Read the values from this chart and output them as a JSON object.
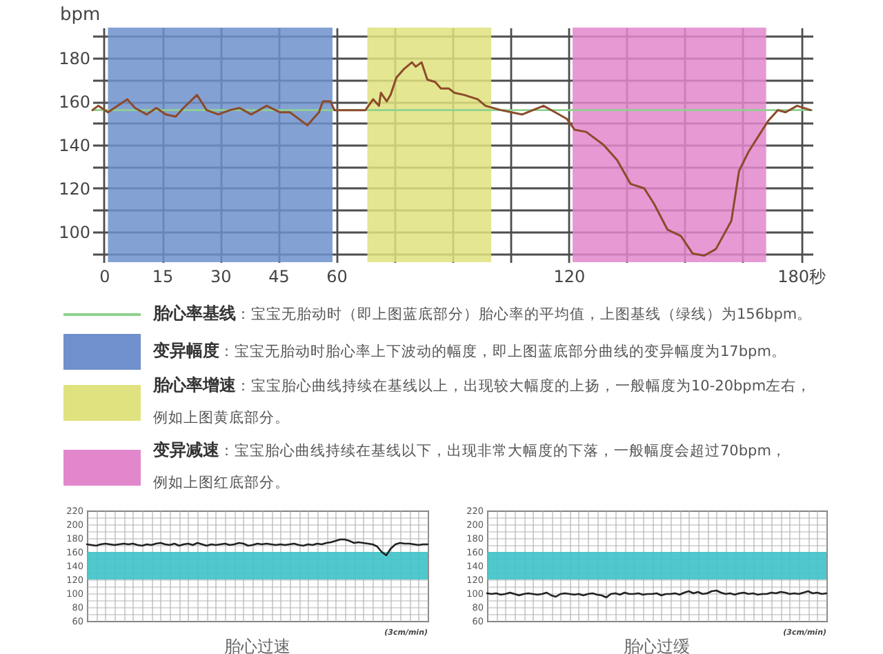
{
  "chart_data": [
    {
      "type": "line",
      "ylabel": "bpm",
      "x": [
        -3,
        -1.5,
        1,
        3.5,
        6,
        8,
        11,
        13.5,
        16,
        18.5,
        20.5,
        24,
        26.5,
        29.5,
        32.5,
        35,
        38,
        42,
        45.5,
        48,
        52.5,
        54.5,
        55.5,
        56.5,
        58.5,
        59.5,
        63.5,
        67.5,
        69.5,
        71,
        71.5,
        73,
        74,
        75.5,
        77.5,
        79.5,
        80.5,
        82,
        83.5,
        85.5,
        87,
        89,
        90.5,
        93,
        96.5,
        98.5,
        102.5,
        108,
        113.5,
        116.5,
        119.5,
        121.5,
        124.5,
        129,
        132.5,
        136,
        139.5,
        142,
        145.5,
        149,
        152,
        155,
        158,
        162,
        164,
        166.5,
        169,
        171.5,
        174,
        176,
        179,
        182.5
      ],
      "series": [
        {
          "color": "#8c4a2a",
          "values": [
            156,
            158,
            155,
            158,
            161,
            157,
            154,
            157,
            154,
            153,
            157,
            163,
            156,
            154,
            156,
            157,
            154,
            158,
            155,
            155,
            149,
            153,
            155,
            160,
            160,
            156,
            156,
            156,
            161,
            158,
            164,
            160,
            163,
            171,
            175,
            178,
            176,
            178,
            170,
            169,
            166,
            166,
            164,
            163,
            161,
            158,
            156,
            154,
            158,
            155,
            152,
            147,
            146,
            140,
            133,
            122,
            120,
            113,
            101,
            98,
            90,
            89,
            92,
            105,
            128,
            137,
            144,
            151,
            156,
            155,
            158,
            156
          ]
        }
      ],
      "xlim": [
        -3,
        183
      ],
      "ylim": [
        86,
        194
      ],
      "xticks": [
        0,
        15,
        30,
        45,
        60,
        {
          "value": 75,
          "label": null
        },
        {
          "value": 90,
          "label": null
        },
        {
          "value": 105,
          "label": null
        },
        120,
        {
          "value": 135,
          "label": null
        },
        {
          "value": 150,
          "label": null
        },
        {
          "value": 165,
          "label": null
        },
        {
          "value": 180,
          "label": "180秒"
        }
      ],
      "yticks": [
        {
          "value": 90,
          "label": null
        },
        100,
        {
          "value": 110,
          "label": null
        },
        120,
        {
          "value": 130,
          "label": null
        },
        140,
        {
          "value": 150,
          "label": null
        },
        160,
        {
          "value": 170,
          "label": null
        },
        180,
        {
          "value": 190,
          "label": null
        }
      ],
      "grid": true,
      "ref_lines": [
        {
          "axis": "y",
          "value": 156,
          "color": "#8fd18f",
          "label": "胎心率基线：宝宝无胎动时（即上图蓝底部分）胎心率的平均值，上图基线（绿线）为156bpm。"
        }
      ],
      "bands": [
        {
          "axis": "x",
          "from": 1,
          "to": 59,
          "color": "#6f90cc",
          "label": "变异幅度：宝宝无胎动时胎心率上下波动的幅度，即上图蓝底部分曲线的变异幅度为17bpm。"
        },
        {
          "axis": "x",
          "from": 68,
          "to": 100,
          "color": "#dfe27e",
          "label": "胎心率增速：宝宝胎心曲线持续在基线以上，出现较大幅度的上扬，一般幅度为10-20bpm左右，例如上图黄底部分。"
        },
        {
          "axis": "x",
          "from": 121,
          "to": 171,
          "color": "#e387cc",
          "label": "变异减速：宝宝胎心曲线持续在基线以下，出现非常大幅度的下落，一般幅度会超过70bpm，例如上图红底部分。"
        }
      ],
      "legend": "bottom"
    },
    {
      "type": "line",
      "title": "胎心过速",
      "annotations": [
        "(3cm/min)"
      ],
      "categories": [
        null,
        null,
        null,
        null,
        null,
        null,
        null,
        null,
        null,
        null,
        null,
        null,
        null,
        null,
        null,
        null,
        null,
        null,
        null,
        null,
        null,
        null,
        null,
        null,
        null,
        null,
        null,
        null,
        null,
        null,
        null,
        null,
        null,
        null,
        null,
        null,
        null,
        null,
        null,
        null,
        null,
        null,
        null,
        null,
        null,
        null,
        null,
        null,
        null,
        null,
        null,
        null,
        null,
        null,
        null,
        null,
        null,
        null,
        null,
        null,
        null,
        null,
        null,
        null,
        null,
        null,
        null,
        null,
        null,
        null,
        null,
        null,
        null,
        null,
        null
      ],
      "series": [
        {
          "color": "#222222",
          "values": [
            171,
            170,
            169,
            171,
            172,
            171,
            170,
            171,
            172,
            171,
            172,
            170,
            169,
            171,
            170,
            172,
            173,
            171,
            170,
            172,
            169,
            171,
            172,
            170,
            173,
            171,
            169,
            171,
            170,
            171,
            172,
            170,
            171,
            173,
            172,
            169,
            170,
            172,
            171,
            172,
            171,
            170,
            171,
            170,
            171,
            172,
            170,
            169,
            171,
            170,
            172,
            171,
            173,
            174,
            176,
            178,
            178,
            176,
            173,
            174,
            173,
            172,
            171,
            168,
            160,
            155,
            165,
            171,
            173,
            172,
            172,
            171,
            170,
            171,
            171
          ]
        }
      ],
      "ylim": [
        60,
        220
      ],
      "yticks": [
        60,
        {
          "value": 70,
          "label": null
        },
        80,
        {
          "value": 90,
          "label": null
        },
        100,
        {
          "value": 110,
          "label": null
        },
        120,
        {
          "value": 130,
          "label": null
        },
        140,
        {
          "value": 150,
          "label": null
        },
        160,
        {
          "value": 170,
          "label": null
        },
        180,
        {
          "value": 190,
          "label": null
        },
        200,
        {
          "value": 210,
          "label": null
        },
        220
      ],
      "grid": true,
      "tick_labels": "y",
      "bands": [
        {
          "axis": "y",
          "from": 120,
          "to": 160,
          "color": "#3ec2c9"
        }
      ]
    },
    {
      "type": "line",
      "title": "胎心过缓",
      "annotations": [
        "(3cm/min)"
      ],
      "categories": [
        null,
        null,
        null,
        null,
        null,
        null,
        null,
        null,
        null,
        null,
        null,
        null,
        null,
        null,
        null,
        null,
        null,
        null,
        null,
        null,
        null,
        null,
        null,
        null,
        null,
        null,
        null,
        null,
        null,
        null,
        null,
        null,
        null,
        null,
        null,
        null,
        null,
        null,
        null,
        null,
        null,
        null,
        null,
        null,
        null,
        null,
        null,
        null,
        null,
        null,
        null,
        null,
        null,
        null,
        null,
        null,
        null,
        null,
        null,
        null,
        null,
        null,
        null,
        null,
        null,
        null,
        null,
        null,
        null,
        null,
        null,
        null,
        null,
        null,
        null
      ],
      "series": [
        {
          "color": "#222222",
          "values": [
            100,
            99,
            100,
            98,
            99,
            101,
            99,
            97,
            99,
            100,
            99,
            98,
            99,
            101,
            97,
            95,
            99,
            100,
            99,
            98,
            99,
            97,
            99,
            100,
            98,
            97,
            94,
            99,
            100,
            98,
            101,
            99,
            99,
            100,
            98,
            99,
            99,
            100,
            97,
            99,
            99,
            100,
            98,
            101,
            103,
            100,
            102,
            99,
            100,
            103,
            104,
            101,
            99,
            100,
            98,
            100,
            101,
            99,
            100,
            98,
            99,
            99,
            101,
            100,
            102,
            101,
            99,
            100,
            99,
            101,
            103,
            100,
            101,
            99,
            100
          ]
        }
      ],
      "ylim": [
        60,
        220
      ],
      "yticks": [
        60,
        {
          "value": 70,
          "label": null
        },
        80,
        {
          "value": 90,
          "label": null
        },
        100,
        {
          "value": 110,
          "label": null
        },
        120,
        {
          "value": 130,
          "label": null
        },
        140,
        {
          "value": 150,
          "label": null
        },
        160,
        {
          "value": 170,
          "label": null
        },
        180,
        {
          "value": 190,
          "label": null
        },
        200,
        {
          "value": 210,
          "label": null
        },
        220
      ],
      "grid": true,
      "tick_labels": "y",
      "bands": [
        {
          "axis": "y",
          "from": 120,
          "to": 160,
          "color": "#3ec2c9"
        }
      ]
    }
  ]
}
